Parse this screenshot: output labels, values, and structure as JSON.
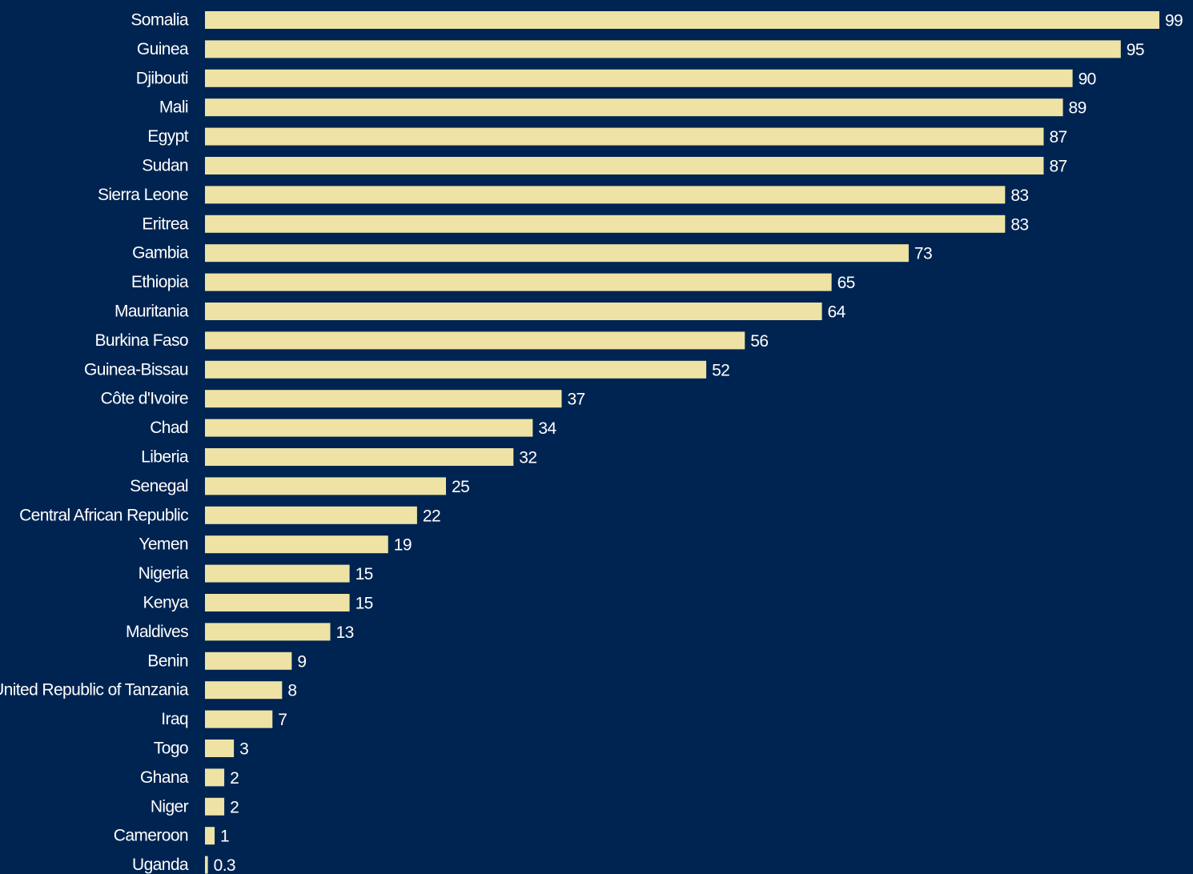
{
  "colors": {
    "background": "#002451",
    "bar": "#EEE3A4",
    "text": "#FFFFFF"
  },
  "chart_data": {
    "type": "bar",
    "orientation": "horizontal",
    "title": "",
    "xlabel": "",
    "ylabel": "",
    "grid": false,
    "legend": "none",
    "xlim": [
      0,
      100
    ],
    "categories": [
      "Somalia",
      "Guinea",
      "Djibouti",
      "Mali",
      "Egypt",
      "Sudan",
      "Sierra Leone",
      "Eritrea",
      "Gambia",
      "Ethiopia",
      "Mauritania",
      "Burkina Faso",
      "Guinea-Bissau",
      "Côte d'Ivoire",
      "Chad",
      "Liberia",
      "Senegal",
      "Central African Republic",
      "Yemen",
      "Nigeria",
      "Kenya",
      "Maldives",
      "Benin",
      "United Republic of Tanzania",
      "Iraq",
      "Togo",
      "Ghana",
      "Niger",
      "Cameroon",
      "Uganda"
    ],
    "values": [
      99,
      95,
      90,
      89,
      87,
      87,
      83,
      83,
      73,
      65,
      64,
      56,
      52,
      37,
      34,
      32,
      25,
      22,
      19,
      15,
      15,
      13,
      9,
      8,
      7,
      3,
      2,
      2,
      1,
      0.3
    ],
    "value_labels": [
      "99",
      "95",
      "90",
      "89",
      "87",
      "87",
      "83",
      "83",
      "73",
      "65",
      "64",
      "56",
      "52",
      "37",
      "34",
      "32",
      "25",
      "22",
      "19",
      "15",
      "15",
      "13",
      "9",
      "8",
      "7",
      "3",
      "2",
      "2",
      "1",
      "0.3"
    ]
  }
}
